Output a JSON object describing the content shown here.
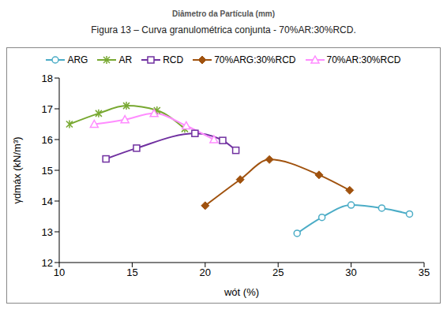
{
  "chart_data": {
    "type": "line",
    "annotations": [
      "Diâmetro da Partícula (mm)",
      "Figura 13 – Curva granulométrica conjunta - 70%AR:30%RCD."
    ],
    "x_label": "wót (%)",
    "y_label": "γdmáx (kN/m³)",
    "xlim": [
      10,
      35
    ],
    "xticks": [
      10,
      15,
      20,
      25,
      30,
      35
    ],
    "ylim": [
      12,
      18
    ],
    "yticks": [
      12,
      13,
      14,
      15,
      16,
      17,
      18
    ],
    "grid": false,
    "legend": "top",
    "line_style": "smooth",
    "series": [
      {
        "name": "ARG",
        "color": "#4bacc6",
        "marker": "circle",
        "x": [
          26.3,
          28.0,
          30.0,
          32.1,
          34.0
        ],
        "values": [
          12.95,
          13.47,
          13.87,
          13.77,
          13.58
        ]
      },
      {
        "name": "AR",
        "color": "#77a830",
        "marker": "x",
        "x": [
          10.7,
          12.7,
          14.6,
          16.7,
          18.6
        ],
        "values": [
          16.5,
          16.85,
          17.1,
          16.95,
          16.35
        ]
      },
      {
        "name": "RCD",
        "color": "#7030a0",
        "marker": "square",
        "x": [
          13.2,
          15.3,
          19.3,
          21.2,
          22.1
        ],
        "values": [
          15.37,
          15.72,
          16.2,
          15.97,
          15.65
        ]
      },
      {
        "name": "70%ARG:30%RCD",
        "color": "#a0520e",
        "marker": "diamond",
        "x": [
          20.0,
          22.4,
          24.4,
          27.8,
          29.9
        ],
        "values": [
          13.85,
          14.7,
          15.35,
          14.85,
          14.35
        ]
      },
      {
        "name": "70%AR:30%RCD",
        "color": "#ff8cff",
        "marker": "triangle",
        "x": [
          12.4,
          14.5,
          16.5,
          18.7,
          20.6
        ],
        "values": [
          16.5,
          16.65,
          16.85,
          16.45,
          16.0
        ]
      }
    ]
  }
}
